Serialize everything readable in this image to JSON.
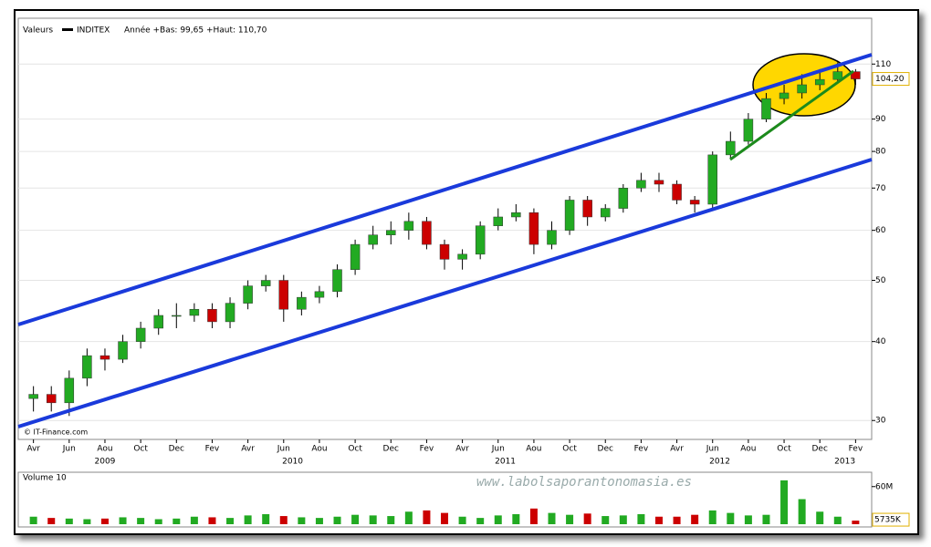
{
  "chart_data": {
    "type": "candlestick",
    "legend_label": "Valeurs",
    "series_name": "INDITEX",
    "legend_text": "Année +Bas: 99,65 +Haut: 110,70",
    "source": "© IT-Finance.com",
    "watermark": "www.labolsaporantonomasia.es",
    "x": [
      0,
      1,
      2,
      3,
      4,
      5,
      6,
      7,
      8,
      9,
      10,
      11,
      12,
      13,
      14,
      15,
      16,
      17,
      18,
      19,
      20,
      21,
      22,
      23,
      24,
      25,
      26,
      27,
      28,
      29,
      30,
      31,
      32,
      33,
      34,
      35,
      36,
      37,
      38,
      39,
      40,
      41,
      42,
      43,
      44,
      45,
      46
    ],
    "open": [
      32.5,
      33,
      32,
      35,
      38,
      37.5,
      40,
      42,
      44,
      44,
      45,
      43,
      46,
      49,
      50,
      45,
      47,
      48,
      52,
      57,
      59,
      60,
      62,
      57,
      54,
      55,
      61,
      63,
      64,
      57,
      60,
      67,
      63,
      65,
      70,
      72,
      71,
      67,
      66,
      79,
      83,
      90,
      97,
      99,
      102,
      104,
      107
    ],
    "high": [
      34,
      34,
      36,
      39,
      39,
      41,
      43,
      45,
      46,
      46,
      46,
      47,
      50,
      51,
      51,
      48,
      49,
      53,
      58,
      61,
      62,
      64,
      63,
      58,
      56,
      62,
      65,
      66,
      65,
      62,
      68,
      68,
      66,
      71,
      74,
      74,
      72,
      68,
      80,
      86,
      92,
      99,
      102,
      106,
      108,
      110.7,
      108
    ],
    "low": [
      31,
      31,
      30.5,
      34,
      36,
      37,
      39,
      41,
      42,
      43,
      42,
      42,
      45,
      48,
      43,
      44,
      46,
      47,
      51,
      56,
      57,
      58,
      56,
      52,
      52,
      54,
      60,
      62,
      55,
      56,
      59,
      61,
      62,
      64,
      69,
      69,
      66,
      64,
      65,
      78,
      82,
      89,
      95,
      97,
      100,
      103,
      102
    ],
    "close": [
      33,
      32,
      35,
      38,
      37.5,
      40,
      42,
      44,
      44,
      45,
      43,
      46,
      49,
      50,
      45,
      47,
      48,
      52,
      57,
      59,
      60,
      62,
      57,
      54,
      55,
      61,
      63,
      64,
      57,
      60,
      67,
      63,
      65,
      70,
      72,
      71,
      67,
      66,
      79,
      83,
      90,
      97,
      99,
      102,
      104,
      107,
      104.2
    ],
    "up_color": "#22aa22",
    "down_color": "#cc0000",
    "log_scale": true,
    "ylim": [
      28,
      130
    ],
    "yticks": [
      30,
      40,
      50,
      60,
      70,
      80,
      90,
      110
    ],
    "grid": true,
    "last": {
      "value": 104.2,
      "label": "104,20"
    },
    "xlim": [
      -0.85,
      46.9
    ],
    "xticks": [
      {
        "value": 0,
        "label": "Avr"
      },
      {
        "value": 2,
        "label": "Jun"
      },
      {
        "value": 4,
        "label": "Aou"
      },
      {
        "value": 6,
        "label": "Oct"
      },
      {
        "value": 8,
        "label": "Dec"
      },
      {
        "value": 10,
        "label": "Fev"
      },
      {
        "value": 12,
        "label": "Avr"
      },
      {
        "value": 14,
        "label": "Jun"
      },
      {
        "value": 16,
        "label": "Aou"
      },
      {
        "value": 18,
        "label": "Oct"
      },
      {
        "value": 20,
        "label": "Dec"
      },
      {
        "value": 22,
        "label": "Fev"
      },
      {
        "value": 24,
        "label": "Avr"
      },
      {
        "value": 26,
        "label": "Jun"
      },
      {
        "value": 28,
        "label": "Aou"
      },
      {
        "value": 30,
        "label": "Oct"
      },
      {
        "value": 32,
        "label": "Dec"
      },
      {
        "value": 34,
        "label": "Fev"
      },
      {
        "value": 36,
        "label": "Avr"
      },
      {
        "value": 38,
        "label": "Jun"
      },
      {
        "value": 40,
        "label": "Aou"
      },
      {
        "value": 42,
        "label": "Oct"
      },
      {
        "value": 44,
        "label": "Dec"
      },
      {
        "value": 46,
        "label": "Fev"
      }
    ],
    "years": [
      {
        "value": 4,
        "label": "2009"
      },
      {
        "value": 14.5,
        "label": "2010"
      },
      {
        "value": 26.4,
        "label": "2011"
      },
      {
        "value": 38.4,
        "label": "2012"
      },
      {
        "value": 45.4,
        "label": "2013"
      }
    ],
    "volume": {
      "title": "Volume 10",
      "values": [
        12000000,
        10000000,
        9000000,
        8000000,
        9000000,
        11000000,
        10000000,
        8000000,
        9000000,
        12000000,
        11000000,
        10000000,
        14000000,
        16000000,
        13000000,
        11000000,
        10000000,
        12000000,
        15000000,
        14000000,
        13000000,
        20000000,
        22000000,
        18000000,
        12000000,
        10000000,
        14000000,
        16000000,
        25000000,
        18000000,
        15000000,
        17000000,
        13000000,
        14000000,
        16000000,
        12000000,
        12000000,
        15000000,
        22000000,
        18000000,
        14000000,
        15000000,
        70000000,
        40000000,
        20000000,
        12000000,
        5735000
      ],
      "ylim": [
        0,
        80000000
      ],
      "yticks": [
        {
          "value": 60000000,
          "label": "60M"
        }
      ],
      "last": {
        "value": 5735000,
        "label": "5735K"
      }
    }
  }
}
